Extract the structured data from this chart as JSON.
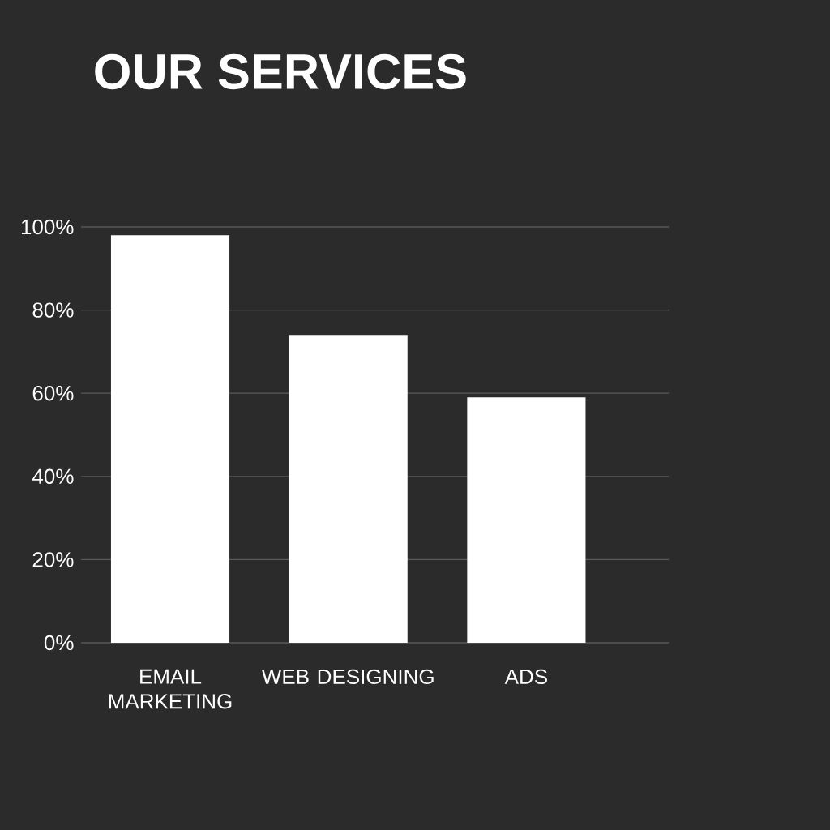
{
  "chart_data": {
    "type": "bar",
    "title": "OUR SERVICES",
    "categories": [
      "EMAIL MARKETING",
      "WEB DESIGNING",
      "ADS"
    ],
    "values": [
      98,
      74,
      59
    ],
    "color": "#ffffff",
    "ylim": [
      0,
      100
    ],
    "yticks": [
      {
        "value": 0,
        "label": "0%"
      },
      {
        "value": 20,
        "label": "20%"
      },
      {
        "value": 40,
        "label": "40%"
      },
      {
        "value": 60,
        "label": "60%"
      },
      {
        "value": 80,
        "label": "80%"
      },
      {
        "value": 100,
        "label": "100%"
      }
    ],
    "grid": "y"
  }
}
